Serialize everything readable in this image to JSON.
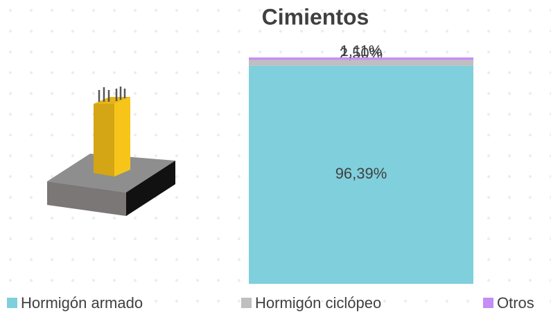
{
  "chart_data": {
    "type": "bar",
    "stacked": true,
    "title": "Cimientos",
    "categories": [
      null
    ],
    "ylim": [
      0,
      100
    ],
    "series": [
      {
        "name": "Hormigón armado",
        "color": "#80cfdc",
        "values": [
          96.39
        ],
        "value_labels": [
          "96,39%"
        ]
      },
      {
        "name": "Hormigón ciclópeo",
        "color": "#bfbfbf",
        "values": [
          2.5
        ],
        "value_labels": [
          "2,50%"
        ]
      },
      {
        "name": "Otros",
        "color": "#c48ef5",
        "values": [
          1.11
        ],
        "value_labels": [
          "1,11%"
        ]
      }
    ]
  }
}
